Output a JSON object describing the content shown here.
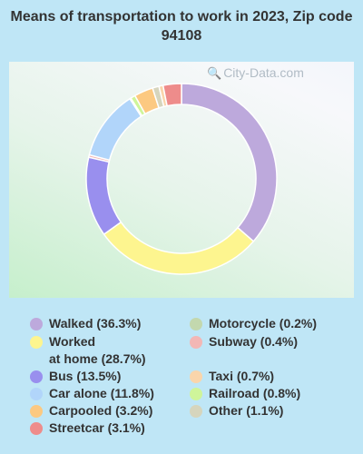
{
  "chart_data": {
    "type": "pie",
    "title": "Means of transportation to work in 2023, Zip code 94108",
    "slices": [
      {
        "label": "Walked (36.3%)",
        "value": 36.3,
        "color": "#bda9dc"
      },
      {
        "label": "Worked\nat home (28.7%)",
        "value": 28.7,
        "color": "#fdf58f"
      },
      {
        "label": "Bus (13.5%)",
        "value": 13.5,
        "color": "#998fee"
      },
      {
        "label": "Subway (0.4%)",
        "value": 0.4,
        "color": "#f3b7b5"
      },
      {
        "label": "Car alone (11.8%)",
        "value": 11.8,
        "color": "#b1d5fa"
      },
      {
        "label": "Motorcycle (0.2%)",
        "value": 0.2,
        "color": "#c3d8ae"
      },
      {
        "label": "Railroad (0.8%)",
        "value": 0.8,
        "color": "#cff59a"
      },
      {
        "label": "Carpooled (3.2%)",
        "value": 3.2,
        "color": "#fcc981"
      },
      {
        "label": "Other (1.1%)",
        "value": 1.1,
        "color": "#d6d5bd"
      },
      {
        "label": "Taxi (0.7%)",
        "value": 0.7,
        "color": "#fad5ab"
      },
      {
        "label": "Streetcar (3.1%)",
        "value": 3.1,
        "color": "#ee8c8b"
      }
    ],
    "legend": {
      "left": [
        "Walked (36.3%)",
        "Worked\nat home (28.7%)",
        "Bus (13.5%)",
        "Car alone (11.8%)",
        "Carpooled (3.2%)",
        "Streetcar (3.1%)"
      ],
      "right": [
        "Motorcycle (0.2%)",
        "Subway (0.4%)",
        "Taxi (0.7%)",
        "Railroad (0.8%)",
        "Other (1.1%)"
      ]
    }
  },
  "watermark": "City-Data.com",
  "watermark_icon": "magnifier-icon"
}
